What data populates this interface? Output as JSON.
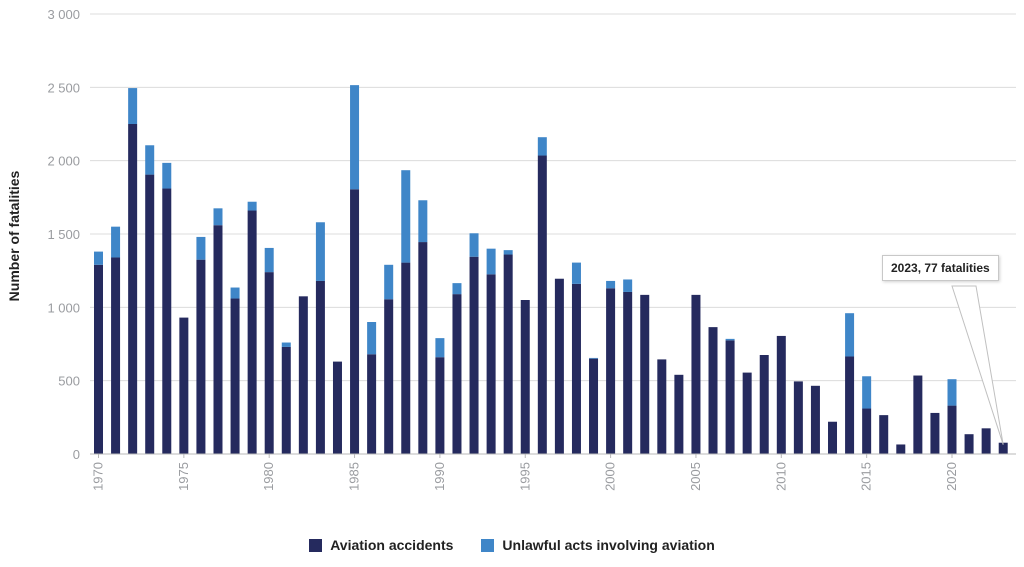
{
  "chart_data": {
    "type": "bar",
    "stacked": true,
    "ylabel": "Number of fatalities",
    "xlabel": "",
    "ylim": [
      0,
      3000
    ],
    "yticks": [
      0,
      500,
      1000,
      1500,
      2000,
      2500,
      3000
    ],
    "ytick_labels": [
      "0",
      "500",
      "1 000",
      "1 500",
      "2 000",
      "2 500",
      "3 000"
    ],
    "xtick_labels": [
      "1970",
      "1975",
      "1980",
      "1985",
      "1990",
      "1995",
      "2000",
      "2005",
      "2010",
      "2015",
      "2020"
    ],
    "grid": "horizontal",
    "legend_placement": "bottom-center",
    "categories": [
      1970,
      1971,
      1972,
      1973,
      1974,
      1975,
      1976,
      1977,
      1978,
      1979,
      1980,
      1981,
      1982,
      1983,
      1984,
      1985,
      1986,
      1987,
      1988,
      1989,
      1990,
      1991,
      1992,
      1993,
      1994,
      1995,
      1996,
      1997,
      1998,
      1999,
      2000,
      2001,
      2002,
      2003,
      2004,
      2005,
      2006,
      2007,
      2008,
      2009,
      2010,
      2011,
      2012,
      2013,
      2014,
      2015,
      2016,
      2017,
      2018,
      2019,
      2020,
      2021,
      2022,
      2023
    ],
    "series": [
      {
        "name": "Aviation accidents",
        "color": "#252a5e",
        "values": [
          1290,
          1340,
          2250,
          1905,
          1810,
          930,
          1325,
          1560,
          1060,
          1660,
          1240,
          730,
          1075,
          1180,
          630,
          1805,
          680,
          1055,
          1305,
          1445,
          660,
          1090,
          1345,
          1225,
          1360,
          1050,
          2035,
          1195,
          1160,
          650,
          1130,
          1105,
          1085,
          645,
          540,
          1085,
          865,
          775,
          555,
          675,
          805,
          495,
          465,
          220,
          665,
          310,
          265,
          65,
          535,
          280,
          330,
          135,
          175,
          77
        ]
      },
      {
        "name": "Unlawful acts involving aviation",
        "color": "#3f86c8",
        "values": [
          90,
          210,
          245,
          200,
          175,
          0,
          155,
          115,
          75,
          60,
          165,
          30,
          0,
          400,
          0,
          710,
          220,
          235,
          630,
          285,
          130,
          75,
          160,
          175,
          30,
          0,
          125,
          0,
          145,
          5,
          50,
          85,
          0,
          0,
          0,
          0,
          0,
          10,
          0,
          0,
          0,
          0,
          0,
          0,
          295,
          220,
          0,
          0,
          0,
          0,
          180,
          0,
          0,
          0
        ]
      }
    ],
    "annotations": [
      {
        "text": "2023, 77 fatalities",
        "x": 2023,
        "y": 77
      }
    ]
  }
}
